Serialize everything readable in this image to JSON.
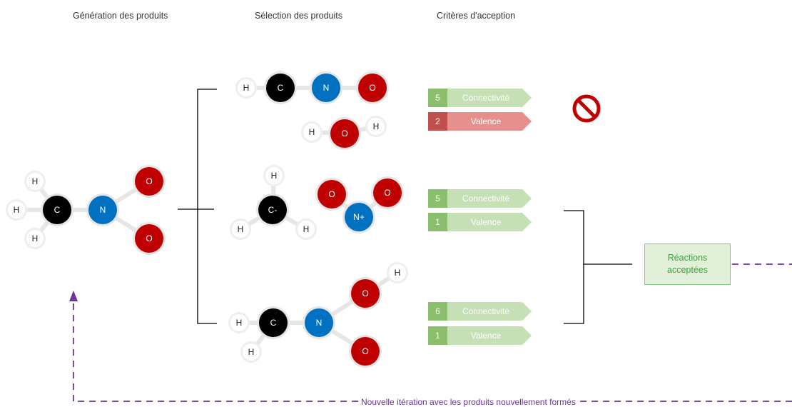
{
  "columns": {
    "generation": "Génération des produits",
    "selection": "Sélection des produits",
    "criteria": "Critères d'acception"
  },
  "atoms": {
    "h": "H",
    "c": "C",
    "c_minus": "C-",
    "n": "N",
    "n_plus": "N+",
    "o": "O"
  },
  "criteria_rows": [
    {
      "score": "5",
      "label": "Connectivité",
      "status": "ok"
    },
    {
      "score": "2",
      "label": "Valence",
      "status": "bad"
    },
    {
      "score": "5",
      "label": "Connectivité",
      "status": "ok"
    },
    {
      "score": "1",
      "label": "Valence",
      "status": "ok"
    },
    {
      "score": "6",
      "label": "Connectivité",
      "status": "ok"
    },
    {
      "score": "1",
      "label": "Valence",
      "status": "ok"
    }
  ],
  "accepted": {
    "line1": "Réactions",
    "line2": "acceptées"
  },
  "iteration_label": "Nouvelle itération avec les produits nouvellement formés",
  "icons": {
    "rejected": "prohibited-icon"
  },
  "colors": {
    "carbon": "#000000",
    "nitrogen": "#0070c0",
    "oxygen": "#c00000",
    "accept": "#8cbf6d",
    "reject": "#c0504d",
    "iteration": "#7030a0"
  }
}
